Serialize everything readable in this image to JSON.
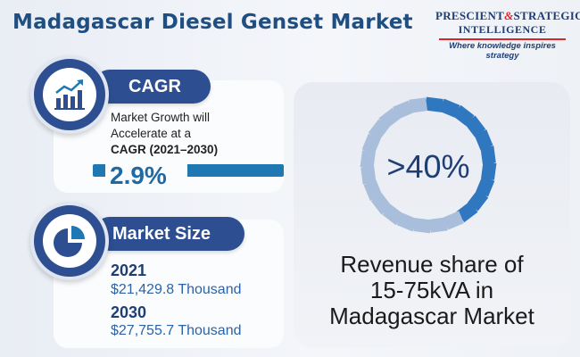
{
  "title": "Madagascar Diesel Genset Market",
  "brand": {
    "line1_a": "PRESCIENT",
    "line1_amp": "&",
    "line1_b": "STRATEGIC",
    "line2": "INTELLIGENCE",
    "tagline": "Where knowledge inspires strategy"
  },
  "cagr": {
    "label": "CAGR",
    "desc_line1": "Market Growth will",
    "desc_line2": "Accelerate at a",
    "desc_line3": "CAGR (2021–2030)",
    "value": "2.9%",
    "icon": "growth-chart-icon"
  },
  "market_size": {
    "label": "Market Size",
    "icon": "pie-chart-icon",
    "year1": "2021",
    "value1": "$21,429.8 Thousand",
    "year2": "2030",
    "value2": "$27,755.7 Thousand"
  },
  "revenue": {
    "percent": ">40%",
    "share_fraction": 0.4,
    "text_line1": "Revenue share of",
    "text_line2": "15-75kVA  in",
    "text_line3": "Madagascar Market"
  },
  "colors": {
    "primary_navy": "#2d4f91",
    "accent_blue": "#1f78b4",
    "ring_light": "#a9bedb",
    "ring_dark": "#2f78bf",
    "brand_red": "#d9262a"
  }
}
